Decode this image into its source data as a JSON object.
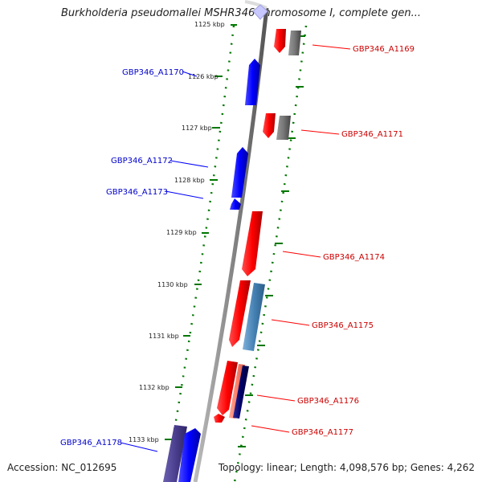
{
  "title": "Burkholderia pseudomallei MSHR346 chromosome I, complete gen...",
  "footer": {
    "accession": "Accession: NC_012695",
    "summary": "Topology: linear; Length: 4,098,576 bp; Genes: 4,262"
  },
  "colors": {
    "forward": "#ff0000",
    "reverse": "#0000ff",
    "grey_gene": "#777777",
    "steel_gene": "#4682b4",
    "navy_gene": "#000066",
    "salmon_gene": "#ff7f6a",
    "purple_gene": "#4b3f8f",
    "ticks": "#007700",
    "backbone": "#888888"
  },
  "ticks": [
    "1125 kbp",
    "1126 kbp",
    "1127 kbp",
    "1128 kbp",
    "1129 kbp",
    "1130 kbp",
    "1131 kbp",
    "1132 kbp",
    "1133 kbp"
  ],
  "labels": [
    {
      "text": "GBP346_A1169",
      "strand": "forward"
    },
    {
      "text": "GBP346_A1170",
      "strand": "reverse"
    },
    {
      "text": "GBP346_A1171",
      "strand": "forward"
    },
    {
      "text": "GBP346_A1172",
      "strand": "reverse"
    },
    {
      "text": "GBP346_A1173",
      "strand": "reverse"
    },
    {
      "text": "GBP346_A1174",
      "strand": "forward"
    },
    {
      "text": "GBP346_A1175",
      "strand": "forward"
    },
    {
      "text": "GBP346_A1176",
      "strand": "forward"
    },
    {
      "text": "GBP346_A1177",
      "strand": "forward"
    },
    {
      "text": "GBP346_A1178",
      "strand": "reverse"
    }
  ]
}
